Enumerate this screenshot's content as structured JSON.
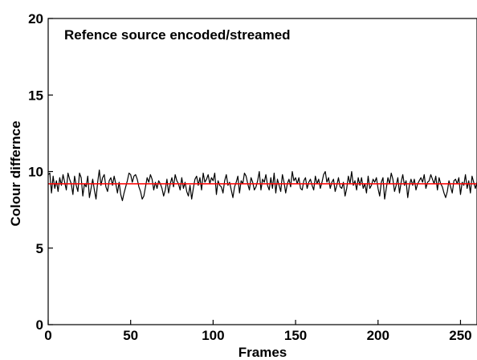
{
  "chart_data": {
    "type": "line",
    "title": "Refence source encoded/streamed",
    "xlabel": "Frames",
    "ylabel": "Colour differnce",
    "xlim": [
      0,
      260
    ],
    "ylim": [
      0,
      20
    ],
    "xticks": [
      0,
      50,
      100,
      150,
      200,
      250
    ],
    "yticks": [
      0,
      5,
      10,
      15,
      20
    ],
    "grid": false,
    "series": [
      {
        "color": "#000000",
        "x_start": 0,
        "x_step": 1,
        "values": [
          9.8,
          9.9,
          8.6,
          9.7,
          8.9,
          9.4,
          8.7,
          9.6,
          9.1,
          9.8,
          9.3,
          8.8,
          9.9,
          9.5,
          9.2,
          8.5,
          9.7,
          9.1,
          8.7,
          9.9,
          9.6,
          8.4,
          9.2,
          9.0,
          9.7,
          8.3,
          8.9,
          9.5,
          8.8,
          8.2,
          9.3,
          10.1,
          9.1,
          9.6,
          9.8,
          9.0,
          8.7,
          9.4,
          9.6,
          9.1,
          9.7,
          9.2,
          8.6,
          9.3,
          8.5,
          8.1,
          8.6,
          9.0,
          9.4,
          9.9,
          9.8,
          9.3,
          9.7,
          9.8,
          9.5,
          9.0,
          8.7,
          8.2,
          8.4,
          9.0,
          9.6,
          9.3,
          9.8,
          9.5,
          8.8,
          9.3,
          8.9,
          9.4,
          9.2,
          8.9,
          8.4,
          8.8,
          9.5,
          8.6,
          9.2,
          9.6,
          9.0,
          9.8,
          9.4,
          9.2,
          8.8,
          9.6,
          8.9,
          9.3,
          8.7,
          8.4,
          9.1,
          8.2,
          8.9,
          9.5,
          9.7,
          9.1,
          9.6,
          8.8,
          9.9,
          9.3,
          9.5,
          9.8,
          9.2,
          9.6,
          9.4,
          9.9,
          8.5,
          9.4,
          9.1,
          9.0,
          8.6,
          9.4,
          9.8,
          9.1,
          9.3,
          8.8,
          8.3,
          9.0,
          9.3,
          9.7,
          8.6,
          9.4,
          9.2,
          9.9,
          9.7,
          9.2,
          8.8,
          9.6,
          9.3,
          8.8,
          9.0,
          9.4,
          10.0,
          8.8,
          9.5,
          9.3,
          9.8,
          9.1,
          8.8,
          9.6,
          8.9,
          9.9,
          8.6,
          9.5,
          9.1,
          8.7,
          9.8,
          9.3,
          8.6,
          9.2,
          9.5,
          9.0,
          10.0,
          9.4,
          9.6,
          9.2,
          9.6,
          8.9,
          8.8,
          9.4,
          9.6,
          8.9,
          9.3,
          9.5,
          9.1,
          8.8,
          9.7,
          9.2,
          9.5,
          8.9,
          9.3,
          9.8,
          10.0,
          9.3,
          9.6,
          8.9,
          9.3,
          9.5,
          8.7,
          9.1,
          9.6,
          9.0,
          8.9,
          9.3,
          8.4,
          8.9,
          9.7,
          9.2,
          10.0,
          9.1,
          9.4,
          8.8,
          9.6,
          9.1,
          9.6,
          8.9,
          9.2,
          8.6,
          9.7,
          8.9,
          9.1,
          9.5,
          9.3,
          9.6,
          8.9,
          8.4,
          9.3,
          9.6,
          8.2,
          8.9,
          9.6,
          9.2,
          9.9,
          9.5,
          8.7,
          9.1,
          9.6,
          8.6,
          9.3,
          9.8,
          9.1,
          9.4,
          8.3,
          9.1,
          9.5,
          9.1,
          9.5,
          8.8,
          9.2,
          9.4,
          9.6,
          9.3,
          9.8,
          8.9,
          9.3,
          9.4,
          9.8,
          9.5,
          9.2,
          9.7,
          8.8,
          9.6,
          9.2,
          9.0,
          8.6,
          8.3,
          8.7,
          9.4,
          9.0,
          8.6,
          9.4,
          9.5,
          9.2,
          9.6,
          8.5,
          9.3,
          9.1,
          9.8,
          8.9,
          9.4,
          8.6,
          9.7,
          9.3,
          8.9,
          9.3,
          9.7,
          8.9,
          9.6,
          9.1,
          8.8,
          9.5,
          10.1,
          8.6,
          9.7,
          10.0,
          10.1
        ]
      },
      {
        "color": "#ff0000",
        "x": [
          0,
          260
        ],
        "values": [
          9.2,
          9.2
        ]
      }
    ]
  }
}
